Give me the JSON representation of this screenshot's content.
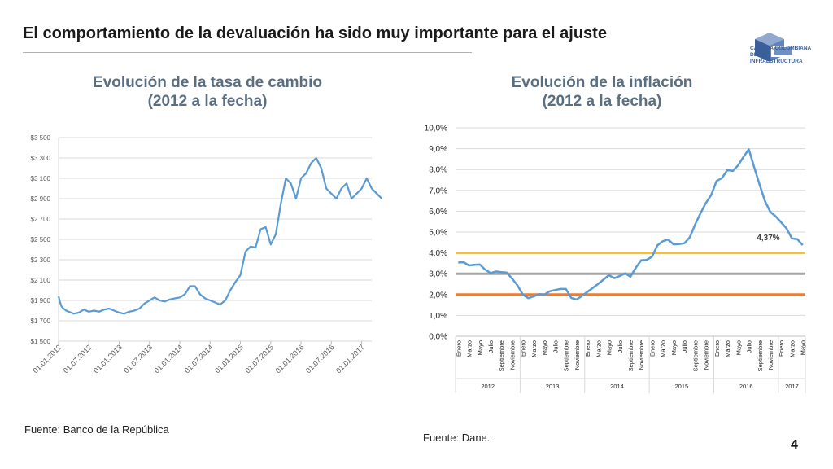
{
  "slide": {
    "title": "El comportamiento de la devaluación ha sido muy importante para el ajuste",
    "logo_line1": "CÁMARA COLOMBIANA",
    "logo_line2": "DE LA INFRAESTRUCTURA",
    "source_left": "Fuente: Banco de la República",
    "source_right": "Fuente: Dane.",
    "page_number": "4"
  },
  "colors": {
    "line": "#5b9bd5",
    "yellow": "#f5c132",
    "gray": "#a6a6a6",
    "orange": "#ed7d31",
    "title": "#5a6e82",
    "logo": "#3a5f9a"
  },
  "chart_data": [
    {
      "type": "line",
      "title": "Evolución de la tasa de cambio\n(2012 a la fecha)",
      "title_lines": [
        "Evolución de la tasa de cambio",
        "(2012 a la fecha)"
      ],
      "y_ticks": [
        "$1 500",
        "$1 700",
        "$1 900",
        "$2 100",
        "$2 300",
        "$2 500",
        "$2 700",
        "$2 900",
        "$3 100",
        "$3 300",
        "$3 500"
      ],
      "ylim": [
        1500,
        3500
      ],
      "x_ticks": [
        "01.01.2012",
        "01.07.2012",
        "01.01.2013",
        "01.07.2013",
        "01.01.2014",
        "01.07.2014",
        "01.01.2015",
        "01.07.2015",
        "01.01.2016",
        "01.07.2016",
        "01.01.2017"
      ],
      "grid": true,
      "series": [
        {
          "x": [
            0,
            0.3,
            0.6,
            1,
            1.5,
            2,
            2.5,
            3,
            4,
            5,
            6,
            7,
            8,
            9,
            10,
            11,
            12,
            13,
            14,
            15,
            16,
            17,
            18,
            19,
            20,
            21,
            22,
            23,
            24,
            25,
            26,
            27,
            28,
            29,
            30,
            31,
            32,
            33,
            34,
            35,
            36,
            37,
            38,
            39,
            40,
            41,
            42,
            43,
            44,
            45,
            46,
            47,
            48,
            49,
            50,
            51,
            52,
            53,
            54,
            55,
            56,
            57,
            58,
            59,
            60,
            61,
            62,
            63,
            64,
            65,
            66,
            66.5
          ],
          "y": [
            1940,
            1880,
            1840,
            1820,
            1800,
            1790,
            1780,
            1770,
            1780,
            1810,
            1790,
            1800,
            1790,
            1810,
            1820,
            1800,
            1780,
            1770,
            1790,
            1800,
            1820,
            1870,
            1900,
            1930,
            1900,
            1890,
            1910,
            1920,
            1930,
            1960,
            2040,
            2040,
            1960,
            1920,
            1900,
            1880,
            1860,
            1900,
            2000,
            2080,
            2150,
            2380,
            2430,
            2420,
            2600,
            2620,
            2450,
            2550,
            2850,
            3100,
            3050,
            2900,
            3100,
            3150,
            3250,
            3300,
            3200,
            3000,
            2950,
            2900,
            3000,
            3050,
            2900,
            2950,
            3000,
            3100,
            3000,
            2950,
            2900,
            2880,
            2940,
            2900
          ]
        }
      ]
    },
    {
      "type": "line",
      "title": "Evolución de la inflación\n(2012 a la fecha)",
      "title_lines": [
        "Evolución de la inflación",
        "(2012 a la fecha)"
      ],
      "y_ticks": [
        "0,0%",
        "1,0%",
        "2,0%",
        "3,0%",
        "4,0%",
        "5,0%",
        "6,0%",
        "7,0%",
        "8,0%",
        "9,0%",
        "10,0%"
      ],
      "ylim": [
        0,
        10
      ],
      "month_labels": [
        "Enero",
        "Marzo",
        "Mayo",
        "Julio",
        "Septiembre",
        "Noviembre",
        "Enero",
        "Marzo",
        "Mayo",
        "Julio",
        "Septiembre",
        "Noviembre",
        "Enero",
        "Marzo",
        "Mayo",
        "Julio",
        "Septiembre",
        "Noviembre",
        "Enero",
        "Marzo",
        "Mayo",
        "Julio",
        "Septiembre",
        "Noviembre",
        "Enero",
        "Marzo",
        "Mayo",
        "Julio",
        "Septiembre",
        "Noviembre",
        "Enero",
        "Marzo",
        "Mayo"
      ],
      "years": [
        {
          "label": "2012",
          "months": 12
        },
        {
          "label": "2013",
          "months": 12
        },
        {
          "label": "2014",
          "months": 12
        },
        {
          "label": "2015",
          "months": 12
        },
        {
          "label": "2016",
          "months": 12
        },
        {
          "label": "2017",
          "months": 5
        }
      ],
      "annotation": "4,37%",
      "reference_lines": [
        {
          "value": 4.0,
          "color": "#f5c132"
        },
        {
          "value": 3.0,
          "color": "#a6a6a6"
        },
        {
          "value": 2.0,
          "color": "#ed7d31"
        }
      ],
      "grid": true,
      "series": [
        {
          "values": [
            3.54,
            3.55,
            3.4,
            3.43,
            3.44,
            3.2,
            3.03,
            3.11,
            3.08,
            3.06,
            2.77,
            2.44,
            2.0,
            1.83,
            1.91,
            2.02,
            2.0,
            2.16,
            2.22,
            2.27,
            2.27,
            1.84,
            1.76,
            1.94,
            2.13,
            2.32,
            2.51,
            2.72,
            2.93,
            2.79,
            2.89,
            3.02,
            2.86,
            3.29,
            3.65,
            3.66,
            3.82,
            4.36,
            4.56,
            4.64,
            4.41,
            4.42,
            4.46,
            4.74,
            5.35,
            5.89,
            6.39,
            6.77,
            7.45,
            7.59,
            7.98,
            7.93,
            8.2,
            8.6,
            8.97,
            8.1,
            7.27,
            6.48,
            5.96,
            5.75,
            5.47,
            5.18,
            4.69,
            4.66,
            4.37
          ]
        }
      ]
    }
  ]
}
